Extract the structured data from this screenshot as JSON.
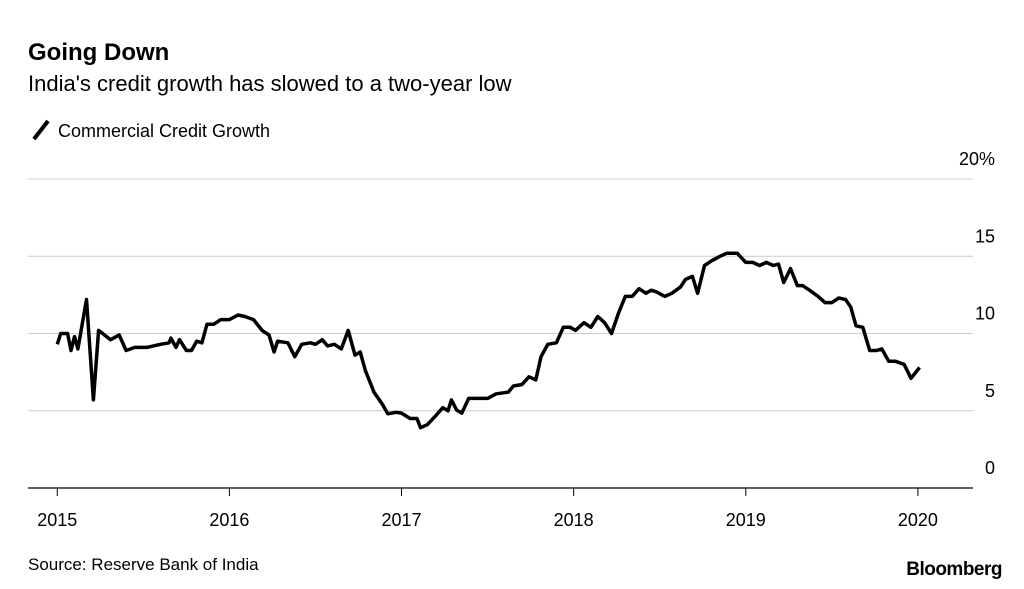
{
  "chart_data": {
    "type": "line",
    "title": "Going Down",
    "subtitle": "India's credit growth has slowed to a two-year low",
    "source": "Source: Reserve Bank of India",
    "logo": "Bloomberg",
    "xlim": [
      2014.83,
      2020.32
    ],
    "xticks": [
      2015,
      2016,
      2017,
      2018,
      2019,
      2020
    ],
    "ylim": [
      0,
      20
    ],
    "yticks": [
      0,
      5,
      10,
      15,
      {
        "value": 20,
        "label": "20%"
      }
    ],
    "grid": true,
    "series": [
      {
        "name": "Commercial Credit Growth",
        "color": "#000000",
        "x": [
          2015.0,
          2015.02,
          2015.06,
          2015.08,
          2015.1,
          2015.12,
          2015.17,
          2015.21,
          2015.24,
          2015.31,
          2015.36,
          2015.4,
          2015.45,
          2015.52,
          2015.6,
          2015.65,
          2015.66,
          2015.69,
          2015.71,
          2015.75,
          2015.78,
          2015.81,
          2015.84,
          2015.87,
          2015.91,
          2015.95,
          2016.0,
          2016.05,
          2016.09,
          2016.14,
          2016.19,
          2016.23,
          2016.26,
          2016.28,
          2016.34,
          2016.38,
          2016.42,
          2016.47,
          2016.5,
          2016.54,
          2016.57,
          2016.61,
          2016.65,
          2016.69,
          2016.73,
          2016.76,
          2016.79,
          2016.84,
          2016.89,
          2016.92,
          2016.97,
          2017.0,
          2017.05,
          2017.09,
          2017.11,
          2017.15,
          2017.2,
          2017.24,
          2017.27,
          2017.29,
          2017.32,
          2017.35,
          2017.39,
          2017.46,
          2017.5,
          2017.55,
          2017.62,
          2017.65,
          2017.7,
          2017.74,
          2017.78,
          2017.81,
          2017.85,
          2017.9,
          2017.94,
          2017.98,
          2018.01,
          2018.06,
          2018.1,
          2018.14,
          2018.18,
          2018.22,
          2018.26,
          2018.3,
          2018.34,
          2018.38,
          2018.42,
          2018.45,
          2018.48,
          2018.53,
          2018.57,
          2018.62,
          2018.65,
          2018.69,
          2018.72,
          2018.76,
          2018.8,
          2018.85,
          2018.89,
          2018.95,
          2019.0,
          2019.04,
          2019.08,
          2019.12,
          2019.16,
          2019.19,
          2019.22,
          2019.26,
          2019.3,
          2019.33,
          2019.37,
          2019.42,
          2019.46,
          2019.5,
          2019.54,
          2019.58,
          2019.61,
          2019.64,
          2019.68,
          2019.72,
          2019.76,
          2019.79,
          2019.83,
          2019.87,
          2019.92,
          2019.96,
          2020.01
        ],
        "values": [
          9.3,
          10.0,
          10.0,
          8.9,
          9.8,
          9.0,
          12.2,
          5.7,
          10.2,
          9.6,
          9.9,
          8.9,
          9.1,
          9.1,
          9.3,
          9.4,
          9.7,
          9.1,
          9.6,
          8.9,
          8.9,
          9.5,
          9.4,
          10.6,
          10.6,
          10.9,
          10.9,
          11.2,
          11.1,
          10.9,
          10.2,
          9.9,
          8.8,
          9.5,
          9.4,
          8.5,
          9.3,
          9.4,
          9.3,
          9.6,
          9.2,
          9.3,
          9.0,
          10.2,
          8.6,
          8.8,
          7.6,
          6.2,
          5.4,
          4.8,
          4.9,
          4.85,
          4.5,
          4.5,
          3.9,
          4.1,
          4.7,
          5.2,
          5.0,
          5.7,
          5.05,
          4.85,
          5.8,
          5.8,
          5.8,
          6.1,
          6.2,
          6.6,
          6.7,
          7.2,
          7.0,
          8.5,
          9.3,
          9.4,
          10.4,
          10.4,
          10.2,
          10.7,
          10.4,
          11.1,
          10.7,
          10.0,
          11.3,
          12.4,
          12.4,
          12.9,
          12.6,
          12.8,
          12.7,
          12.4,
          12.6,
          13.0,
          13.5,
          13.7,
          12.6,
          14.4,
          14.7,
          15.0,
          15.2,
          15.2,
          14.6,
          14.6,
          14.4,
          14.6,
          14.4,
          14.5,
          13.3,
          14.2,
          13.1,
          13.1,
          12.8,
          12.4,
          12.0,
          12.0,
          12.3,
          12.2,
          11.7,
          10.5,
          10.4,
          8.9,
          8.9,
          9.0,
          8.2,
          8.2,
          8.0,
          7.1,
          7.8
        ]
      }
    ]
  }
}
